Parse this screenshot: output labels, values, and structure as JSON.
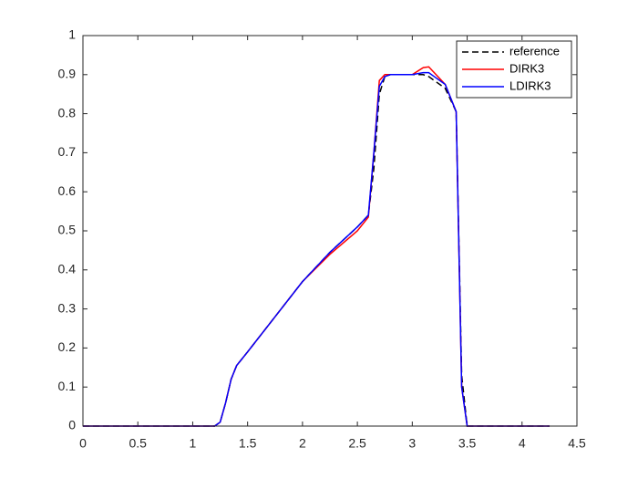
{
  "chart_data": {
    "type": "line",
    "x": [
      0,
      1.2,
      1.25,
      1.3,
      1.35,
      1.4,
      1.5,
      1.75,
      2.0,
      2.25,
      2.5,
      2.6,
      2.65,
      2.7,
      2.75,
      2.8,
      3.0,
      3.1,
      3.15,
      3.2,
      3.3,
      3.4,
      3.45,
      3.5,
      4.25
    ],
    "series": [
      {
        "name": "reference",
        "color": "#000000",
        "dash": true,
        "values": [
          0,
          0,
          0.01,
          0.06,
          0.12,
          0.155,
          0.19,
          0.28,
          0.37,
          0.445,
          0.51,
          0.54,
          0.66,
          0.85,
          0.895,
          0.9,
          0.9,
          0.9,
          0.895,
          0.885,
          0.865,
          0.805,
          0.13,
          0,
          0
        ]
      },
      {
        "name": "DIRK3",
        "color": "#ff0000",
        "dash": false,
        "values": [
          0,
          0,
          0.01,
          0.06,
          0.12,
          0.155,
          0.19,
          0.28,
          0.37,
          0.44,
          0.5,
          0.535,
          0.7,
          0.885,
          0.9,
          0.9,
          0.9,
          0.918,
          0.92,
          0.905,
          0.875,
          0.805,
          0.1,
          0,
          0
        ]
      },
      {
        "name": "LDIRK3",
        "color": "#0000ff",
        "dash": false,
        "values": [
          0,
          0,
          0.01,
          0.06,
          0.12,
          0.155,
          0.19,
          0.28,
          0.37,
          0.445,
          0.51,
          0.54,
          0.7,
          0.87,
          0.895,
          0.9,
          0.9,
          0.905,
          0.905,
          0.895,
          0.875,
          0.805,
          0.1,
          0,
          0
        ]
      }
    ],
    "xlim": [
      0,
      4.5
    ],
    "xticks": [
      0,
      0.5,
      1,
      1.5,
      2,
      2.5,
      3,
      3.5,
      4,
      4.5
    ],
    "ylim": [
      0,
      1
    ],
    "yticks": [
      0,
      0.1,
      0.2,
      0.3,
      0.4,
      0.5,
      0.6,
      0.7,
      0.8,
      0.9,
      1
    ],
    "legend": "top-right"
  }
}
